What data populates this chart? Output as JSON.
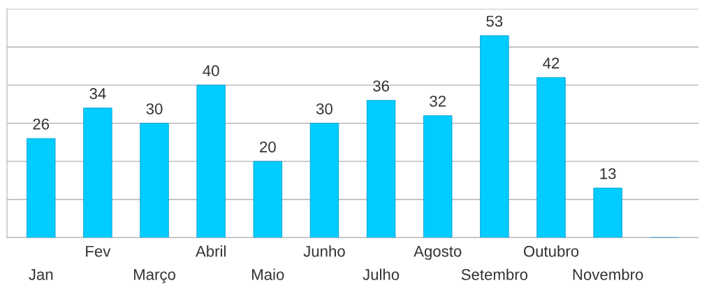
{
  "chart_data": {
    "type": "bar",
    "categories": [
      "Jan",
      "Fev",
      "Março",
      "Abril",
      "Maio",
      "Junho",
      "Julho",
      "Agosto",
      "Setembro",
      "Outubro",
      "Novembro",
      null
    ],
    "values": [
      26,
      34,
      30,
      40,
      20,
      30,
      36,
      32,
      53,
      42,
      13,
      null
    ],
    "color": "#00ccff",
    "data_labels": true,
    "ylim": [
      0,
      60
    ],
    "yticks": [
      {
        "value": 0,
        "label": null
      },
      {
        "value": 10,
        "label": null
      },
      {
        "value": 20,
        "label": null
      },
      {
        "value": 30,
        "label": null
      },
      {
        "value": 40,
        "label": null
      },
      {
        "value": 50,
        "label": null
      },
      {
        "value": 60,
        "label": null
      }
    ],
    "tick_labels": "x",
    "grid": "y"
  }
}
